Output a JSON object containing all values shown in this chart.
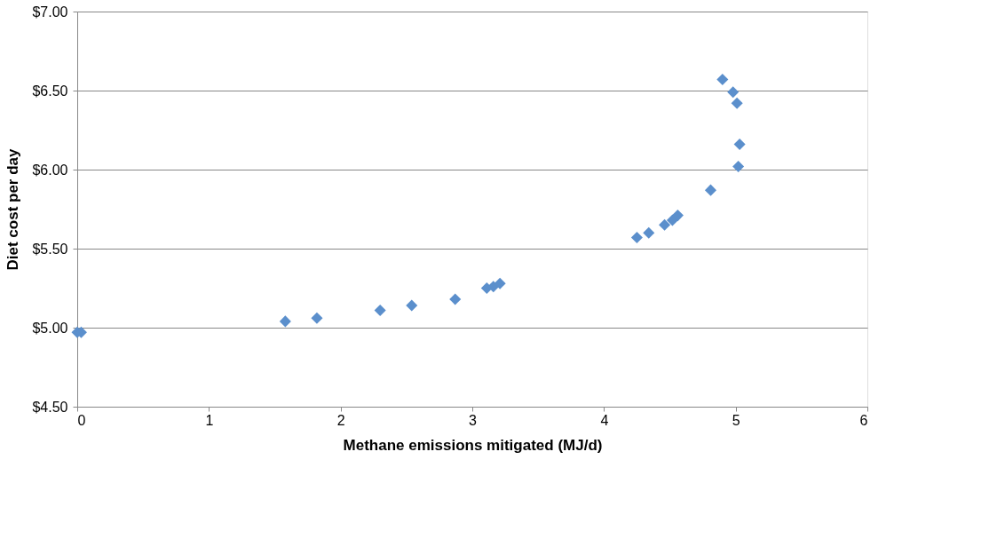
{
  "chart_data": {
    "type": "scatter",
    "xlabel": "Methane emissions mitigated (MJ/d)",
    "ylabel": "Diet cost per day",
    "x": [
      0,
      0.03,
      1.58,
      1.82,
      2.3,
      2.54,
      2.87,
      3.11,
      3.16,
      3.21,
      4.25,
      4.34,
      4.46,
      4.52,
      4.56,
      4.81,
      4.9,
      4.98,
      5.01,
      5.03,
      5.02
    ],
    "series": [
      {
        "color": "#5b8fcc",
        "values": [
          4.97,
          4.97,
          5.04,
          5.06,
          5.11,
          5.14,
          5.18,
          5.25,
          5.26,
          5.28,
          5.57,
          5.6,
          5.65,
          5.68,
          5.71,
          5.87,
          6.57,
          6.49,
          6.42,
          6.16,
          6.02
        ]
      }
    ],
    "xlim": [
      0,
      6
    ],
    "xticks": [
      0,
      1,
      2,
      3,
      4,
      5,
      6
    ],
    "ylim": [
      4.5,
      7
    ],
    "yticks": [
      {
        "value": 4.5,
        "label": "$4.50"
      },
      {
        "value": 5,
        "label": "$5.00"
      },
      {
        "value": 5.5,
        "label": "$5.50"
      },
      {
        "value": 6,
        "label": "$6.00"
      },
      {
        "value": 6.5,
        "label": "$6.50"
      },
      {
        "value": 7,
        "label": "$7.00"
      }
    ],
    "grid": "y",
    "marker": "diamond",
    "legend": false
  }
}
